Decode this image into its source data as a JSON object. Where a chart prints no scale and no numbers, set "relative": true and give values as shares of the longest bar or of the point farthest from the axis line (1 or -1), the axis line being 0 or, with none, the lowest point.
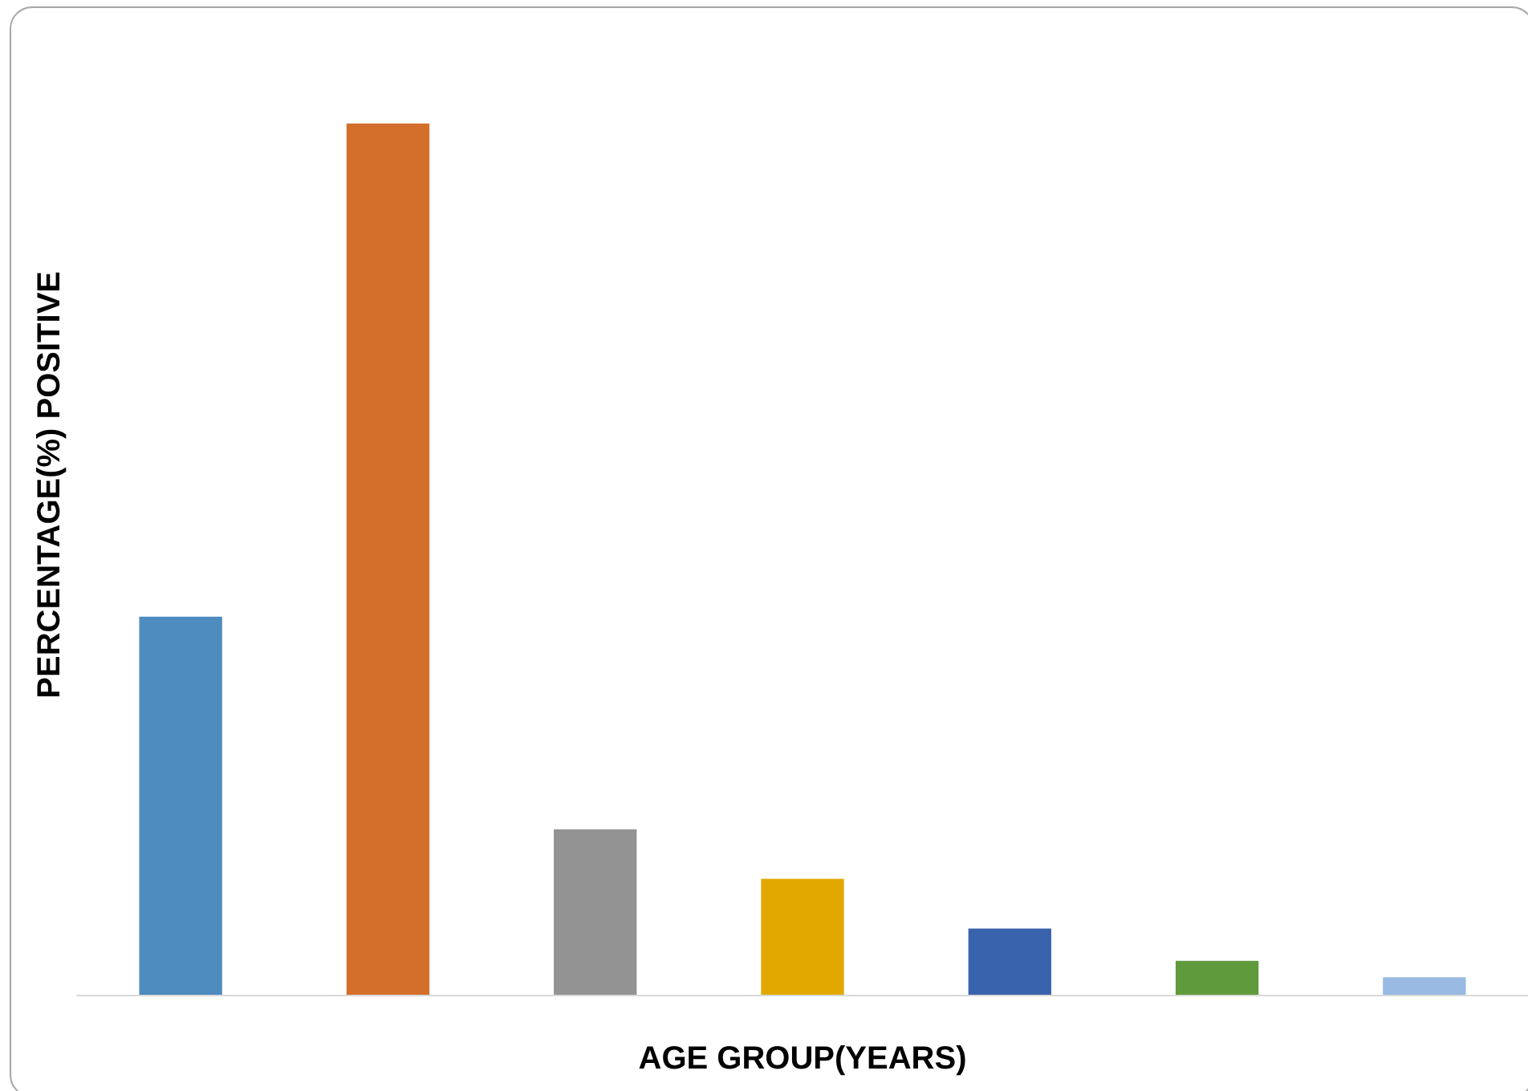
{
  "chart_data": {
    "type": "bar",
    "relative": true,
    "xlabel": "AGE GROUP(YEARS)",
    "ylabel": "PERCENTAGE(%) POSITIVE",
    "categories": [
      null,
      null,
      null,
      null,
      null,
      null,
      null
    ],
    "values": [
      0.434,
      1,
      0.19,
      0.133,
      0.076,
      0.039,
      0.02
    ],
    "colors": [
      "#4e8bbf",
      "#d36f2b",
      "#939393",
      "#e1a900",
      "#3a63ad",
      "#5f9a3d",
      "#98bae3"
    ]
  }
}
